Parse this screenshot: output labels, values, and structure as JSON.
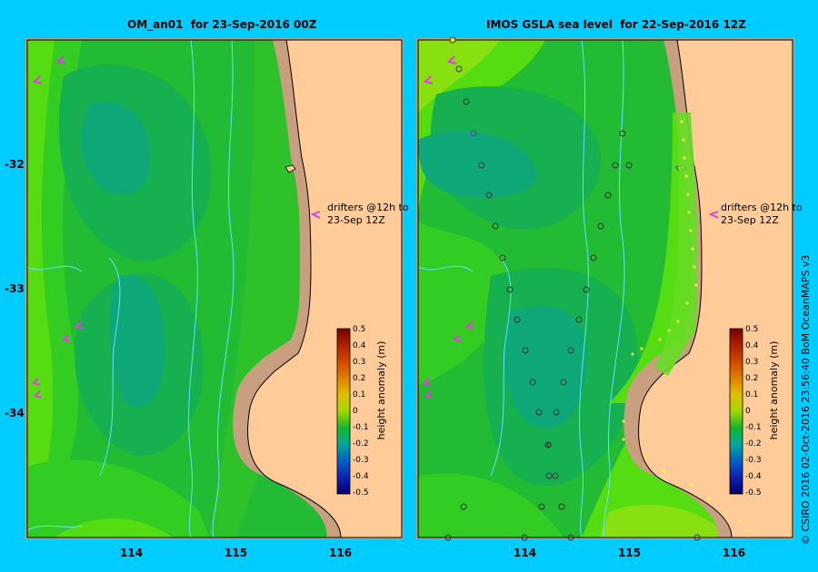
{
  "panels": [
    {
      "id": "left",
      "title": "OM_an01  for 23-Sep-2016 00Z",
      "drifters_label_1": "drifters @12h to",
      "drifters_label_2": "23-Sep 12Z"
    },
    {
      "id": "right",
      "title": "IMOS GSLA sea level  for 22-Sep-2016 12Z",
      "drifters_label_1": "drifters @12h to",
      "drifters_label_2": "23-Sep 12Z"
    }
  ],
  "axes": {
    "x_ticks": [
      "114",
      "115",
      "116"
    ],
    "y_ticks": [
      "-32",
      "-33",
      "-34"
    ]
  },
  "colorbar": {
    "title": "height anomaly (m)",
    "labels": [
      "0.5",
      "0.4",
      "0.3",
      "0.2",
      "0.1",
      "0",
      "-0.1",
      "-0.2",
      "-0.3",
      "-0.4",
      "-0.5"
    ],
    "colors": [
      "#7a0000",
      "#b02000",
      "#d04a00",
      "#e08000",
      "#e0c000",
      "#a0d800",
      "#10b830",
      "#00a8a0",
      "#0060c8",
      "#1020b0",
      "#000070"
    ]
  },
  "credit": "© CSIRO 2016   02-Oct-2016 23:56:40 BoM OceanMAPS v3",
  "colors": {
    "background": "#00ccff",
    "land": "#ffcc99",
    "shelf": "#c8a080",
    "drifter_arrow": "#e040e0"
  }
}
